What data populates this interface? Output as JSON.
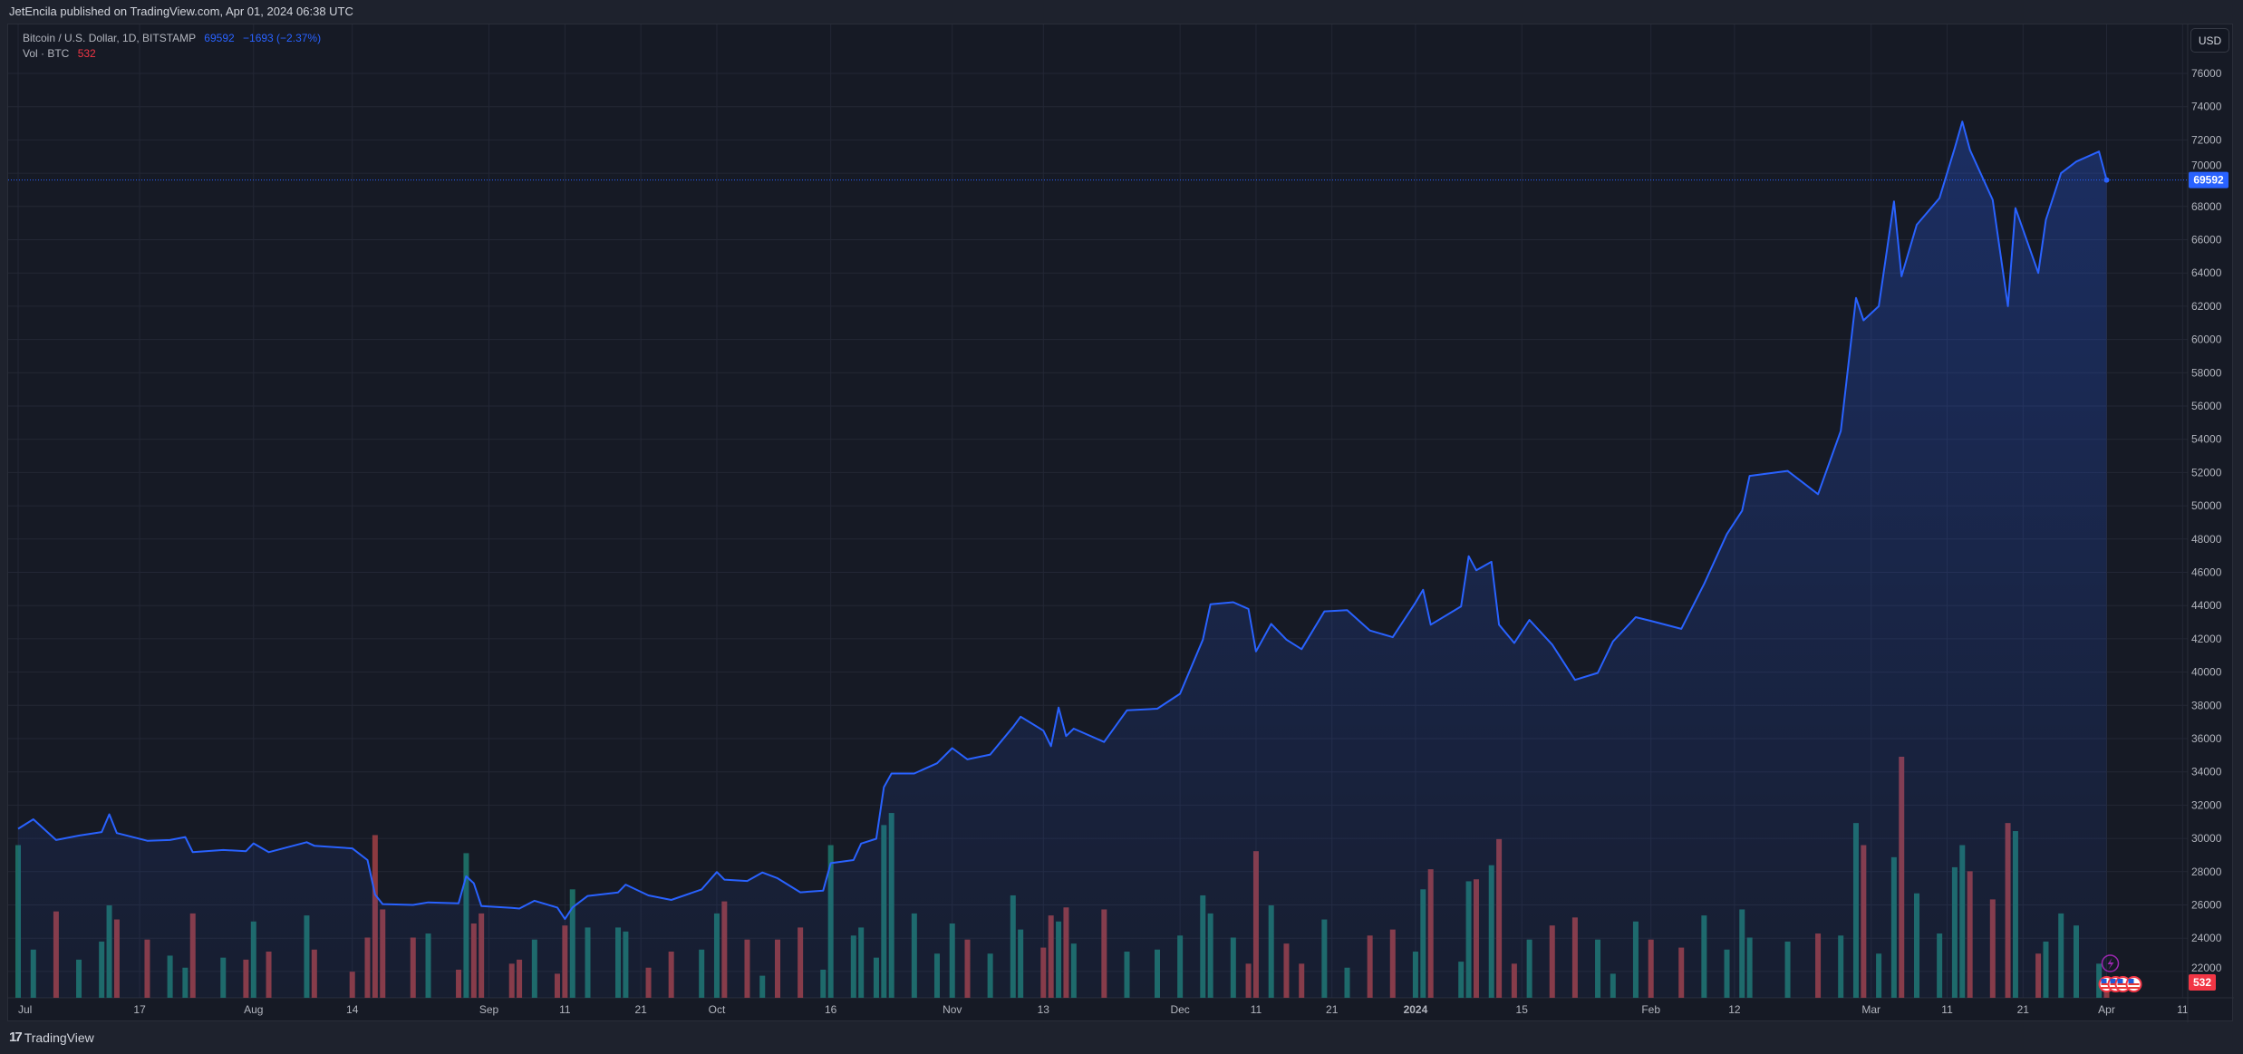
{
  "header": {
    "text": "JetEncila published on TradingView.com, Apr 01, 2024 06:38 UTC"
  },
  "legend": {
    "symbol": "Bitcoin / U.S. Dollar, 1D, BITSTAMP",
    "last": "69592",
    "change": "−1693 (−2.37%)",
    "vol_label": "Vol · BTC",
    "vol_value": "532"
  },
  "currency_button": "USD",
  "footer": {
    "logo": "17",
    "brand": "TradingView"
  },
  "colors": {
    "background": "#161a25",
    "line": "#2962ff",
    "up_volume": "#1d6b63",
    "down_volume": "#8c3a40",
    "last_price": "#2962ff",
    "last_volume": "#f23645"
  },
  "chart_data": {
    "type": "area",
    "title": "",
    "xlabel": "",
    "ylabel": "",
    "grid": true,
    "ylim": [
      22000,
      76000
    ],
    "xlim": [
      "2023-07-01",
      "2024-04-11"
    ],
    "y_ticks": [
      22000,
      24000,
      26000,
      28000,
      30000,
      32000,
      34000,
      36000,
      38000,
      40000,
      42000,
      44000,
      46000,
      48000,
      50000,
      52000,
      54000,
      56000,
      58000,
      60000,
      62000,
      64000,
      66000,
      68000,
      70000,
      72000,
      74000,
      76000
    ],
    "x_ticks": [
      {
        "date": "2023-07-01",
        "label": "Jul"
      },
      {
        "date": "2023-07-17",
        "label": "17"
      },
      {
        "date": "2023-08-01",
        "label": "Aug"
      },
      {
        "date": "2023-08-14",
        "label": "14"
      },
      {
        "date": "2023-09-01",
        "label": "Sep"
      },
      {
        "date": "2023-09-11",
        "label": "11"
      },
      {
        "date": "2023-09-21",
        "label": "21"
      },
      {
        "date": "2023-10-01",
        "label": "Oct"
      },
      {
        "date": "2023-10-16",
        "label": "16"
      },
      {
        "date": "2023-11-01",
        "label": "Nov"
      },
      {
        "date": "2023-11-13",
        "label": "13"
      },
      {
        "date": "2023-12-01",
        "label": "Dec"
      },
      {
        "date": "2023-12-11",
        "label": "11"
      },
      {
        "date": "2023-12-21",
        "label": "21"
      },
      {
        "date": "2024-01-01",
        "label": "2024"
      },
      {
        "date": "2024-01-15",
        "label": "15"
      },
      {
        "date": "2024-02-01",
        "label": "Feb"
      },
      {
        "date": "2024-02-12",
        "label": "12"
      },
      {
        "date": "2024-03-01",
        "label": "Mar"
      },
      {
        "date": "2024-03-11",
        "label": "11"
      },
      {
        "date": "2024-03-21",
        "label": "21"
      },
      {
        "date": "2024-04-01",
        "label": "Apr"
      },
      {
        "date": "2024-04-11",
        "label": "11"
      }
    ],
    "last_price": 69592,
    "last_volume": 532,
    "series": [
      [
        "2023-07-01",
        30580,
        7600
      ],
      [
        "2023-07-03",
        31150,
        2400
      ],
      [
        "2023-07-06",
        29900,
        4300
      ],
      [
        "2023-07-09",
        30170,
        1900
      ],
      [
        "2023-07-12",
        30380,
        2800
      ],
      [
        "2023-07-13",
        31450,
        4600
      ],
      [
        "2023-07-14",
        30320,
        3900
      ],
      [
        "2023-07-18",
        29860,
        2900
      ],
      [
        "2023-07-21",
        29900,
        2100
      ],
      [
        "2023-07-23",
        30080,
        1500
      ],
      [
        "2023-07-24",
        29170,
        4200
      ],
      [
        "2023-07-28",
        29300,
        2000
      ],
      [
        "2023-07-31",
        29230,
        1900
      ],
      [
        "2023-08-01",
        29700,
        3800
      ],
      [
        "2023-08-03",
        29170,
        2300
      ],
      [
        "2023-08-08",
        29770,
        4100
      ],
      [
        "2023-08-09",
        29560,
        2400
      ],
      [
        "2023-08-14",
        29400,
        1300
      ],
      [
        "2023-08-16",
        28700,
        3000
      ],
      [
        "2023-08-17",
        26620,
        8100
      ],
      [
        "2023-08-18",
        26050,
        4400
      ],
      [
        "2023-08-22",
        26000,
        3000
      ],
      [
        "2023-08-24",
        26150,
        3200
      ],
      [
        "2023-08-28",
        26100,
        1400
      ],
      [
        "2023-08-29",
        27720,
        7200
      ],
      [
        "2023-08-30",
        27300,
        3700
      ],
      [
        "2023-08-31",
        25930,
        4200
      ],
      [
        "2023-09-04",
        25820,
        1700
      ],
      [
        "2023-09-05",
        25780,
        1900
      ],
      [
        "2023-09-07",
        26250,
        2900
      ],
      [
        "2023-09-10",
        25840,
        1200
      ],
      [
        "2023-09-11",
        25150,
        3600
      ],
      [
        "2023-09-12",
        25850,
        5400
      ],
      [
        "2023-09-14",
        26540,
        3500
      ],
      [
        "2023-09-18",
        26750,
        3500
      ],
      [
        "2023-09-19",
        27220,
        3300
      ],
      [
        "2023-09-22",
        26570,
        1500
      ],
      [
        "2023-09-25",
        26300,
        2300
      ],
      [
        "2023-09-29",
        26930,
        2400
      ],
      [
        "2023-10-01",
        27980,
        4200
      ],
      [
        "2023-10-02",
        27520,
        4800
      ],
      [
        "2023-10-05",
        27440,
        2900
      ],
      [
        "2023-10-07",
        27950,
        1100
      ],
      [
        "2023-10-09",
        27600,
        2900
      ],
      [
        "2023-10-12",
        26760,
        3500
      ],
      [
        "2023-10-15",
        26860,
        1400
      ],
      [
        "2023-10-16",
        28510,
        7600
      ],
      [
        "2023-10-19",
        28700,
        3100
      ],
      [
        "2023-10-20",
        29690,
        3500
      ],
      [
        "2023-10-22",
        29980,
        2000
      ],
      [
        "2023-10-23",
        33080,
        8600
      ],
      [
        "2023-10-24",
        33900,
        9200
      ],
      [
        "2023-10-27",
        33900,
        4200
      ],
      [
        "2023-10-30",
        34520,
        2200
      ],
      [
        "2023-11-01",
        35430,
        3700
      ],
      [
        "2023-11-03",
        34750,
        2900
      ],
      [
        "2023-11-06",
        35040,
        2200
      ],
      [
        "2023-11-09",
        36700,
        5100
      ],
      [
        "2023-11-10",
        37320,
        3400
      ],
      [
        "2023-11-13",
        36480,
        2500
      ],
      [
        "2023-11-14",
        35550,
        4100
      ],
      [
        "2023-11-15",
        37870,
        3800
      ],
      [
        "2023-11-16",
        36150,
        4500
      ],
      [
        "2023-11-17",
        36600,
        2700
      ],
      [
        "2023-11-21",
        35800,
        4400
      ],
      [
        "2023-11-24",
        37700,
        2300
      ],
      [
        "2023-11-28",
        37800,
        2400
      ],
      [
        "2023-12-01",
        38700,
        3100
      ],
      [
        "2023-12-04",
        41950,
        5100
      ],
      [
        "2023-12-05",
        44080,
        4200
      ],
      [
        "2023-12-08",
        44200,
        3000
      ],
      [
        "2023-12-10",
        43800,
        1700
      ],
      [
        "2023-12-11",
        41240,
        7300
      ],
      [
        "2023-12-13",
        42900,
        4600
      ],
      [
        "2023-12-15",
        41950,
        2700
      ],
      [
        "2023-12-17",
        41380,
        1700
      ],
      [
        "2023-12-20",
        43650,
        3900
      ],
      [
        "2023-12-23",
        43720,
        1500
      ],
      [
        "2023-12-26",
        42500,
        3100
      ],
      [
        "2023-12-29",
        42100,
        3400
      ],
      [
        "2024-01-01",
        44180,
        2300
      ],
      [
        "2024-01-02",
        44950,
        5400
      ],
      [
        "2024-01-03",
        42850,
        6400
      ],
      [
        "2024-01-07",
        43950,
        1800
      ],
      [
        "2024-01-08",
        46970,
        5800
      ],
      [
        "2024-01-09",
        46120,
        5900
      ],
      [
        "2024-01-11",
        46630,
        6600
      ],
      [
        "2024-01-12",
        42850,
        7900
      ],
      [
        "2024-01-14",
        41750,
        1700
      ],
      [
        "2024-01-16",
        43140,
        2900
      ],
      [
        "2024-01-19",
        41650,
        3600
      ],
      [
        "2024-01-22",
        39530,
        4000
      ],
      [
        "2024-01-25",
        39950,
        2900
      ],
      [
        "2024-01-27",
        41840,
        1200
      ],
      [
        "2024-01-30",
        43300,
        3800
      ],
      [
        "2024-02-01",
        43080,
        2900
      ],
      [
        "2024-02-05",
        42600,
        2500
      ],
      [
        "2024-02-08",
        45300,
        4100
      ],
      [
        "2024-02-11",
        48300,
        2400
      ],
      [
        "2024-02-13",
        49700,
        4400
      ],
      [
        "2024-02-14",
        51800,
        3000
      ],
      [
        "2024-02-19",
        52100,
        2800
      ],
      [
        "2024-02-23",
        50700,
        3200
      ],
      [
        "2024-02-26",
        54500,
        3100
      ],
      [
        "2024-02-28",
        62500,
        8700
      ],
      [
        "2024-02-29",
        61150,
        7600
      ],
      [
        "2024-03-02",
        62000,
        2200
      ],
      [
        "2024-03-04",
        68300,
        7000
      ],
      [
        "2024-03-05",
        63800,
        12000
      ],
      [
        "2024-03-07",
        66900,
        5200
      ],
      [
        "2024-03-10",
        68500,
        3200
      ],
      [
        "2024-03-12",
        71500,
        6500
      ],
      [
        "2024-03-13",
        73100,
        7600
      ],
      [
        "2024-03-14",
        71400,
        6300
      ],
      [
        "2024-03-17",
        68400,
        4900
      ],
      [
        "2024-03-19",
        62000,
        8700
      ],
      [
        "2024-03-20",
        67900,
        8300
      ],
      [
        "2024-03-23",
        64000,
        2200
      ],
      [
        "2024-03-24",
        67200,
        2800
      ],
      [
        "2024-03-26",
        70000,
        4200
      ],
      [
        "2024-03-28",
        70700,
        3600
      ],
      [
        "2024-03-31",
        71300,
        1700
      ],
      [
        "2024-04-01",
        69592,
        532
      ]
    ]
  }
}
